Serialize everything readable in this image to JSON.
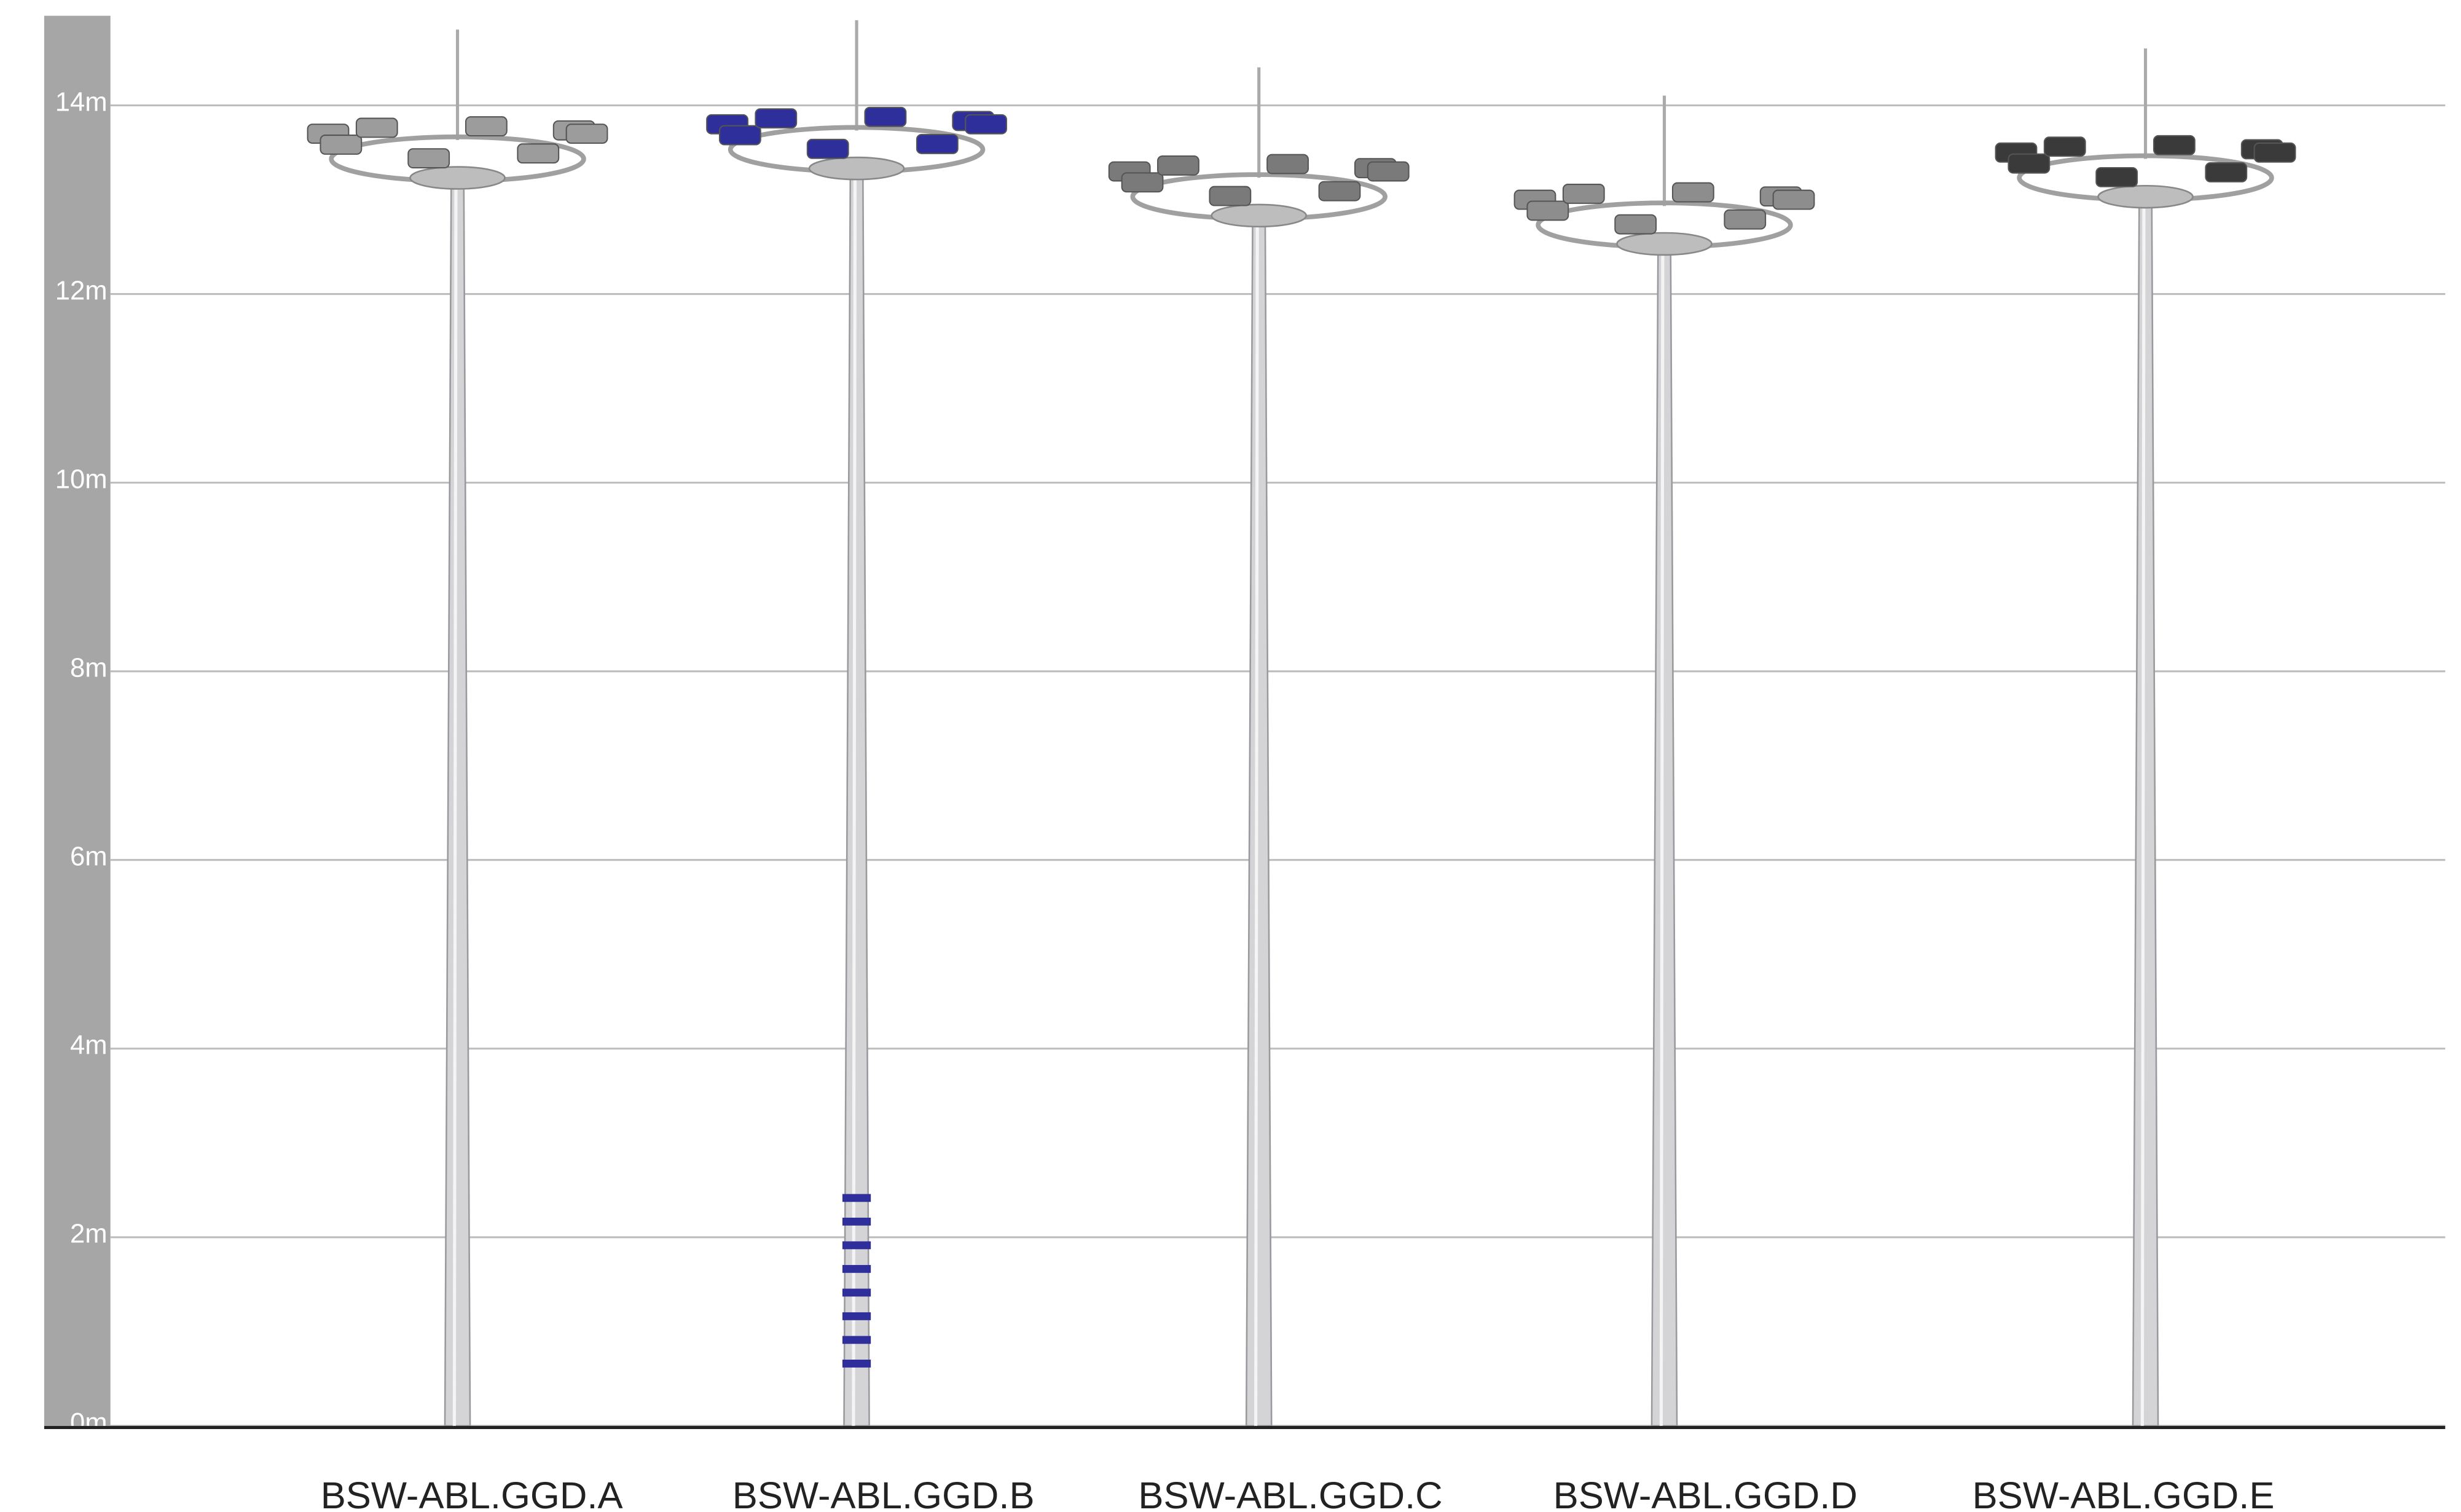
{
  "chart_data": {
    "type": "pictorial",
    "categories": [
      "BSW-ABL.GGD.A",
      "BSW-ABL.GGD.B",
      "BSW-ABL.GGD.C",
      "BSW-ABL.GGD.D",
      "BSW-ABL.GGD.E"
    ],
    "values": [
      13.8,
      13.9,
      13.4,
      13.1,
      13.6
    ],
    "colors": [
      "#9c9c9c",
      "#2f2f9c",
      "#7a7a7a",
      "#8d8d8d",
      "#3a3a3a"
    ],
    "ylim": [
      0,
      14.95
    ],
    "yticks": [
      {
        "value": 0,
        "label": "0m"
      },
      {
        "value": 2,
        "label": "2m"
      },
      {
        "value": 4,
        "label": "4m"
      },
      {
        "value": 6,
        "label": "6m"
      },
      {
        "value": 8,
        "label": "8m"
      },
      {
        "value": 10,
        "label": "10m"
      },
      {
        "value": 12,
        "label": "12m"
      },
      {
        "value": 14,
        "label": "14m"
      }
    ],
    "grid": true
  }
}
